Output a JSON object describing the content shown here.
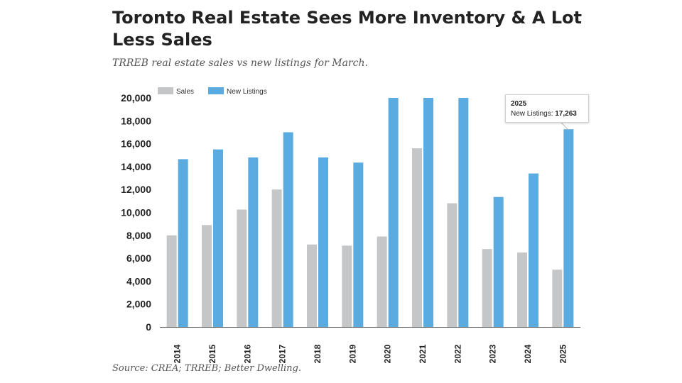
{
  "header": {
    "title": "Toronto Real Estate Sees More Inventory & A Lot Less Sales",
    "subtitle": "TRREB real estate sales vs new listings for March."
  },
  "footer": {
    "source": "Source: CREA; TRREB; Better Dwelling."
  },
  "tooltip": {
    "year": "2025",
    "label": "New Listings:",
    "value": "17,263"
  },
  "chart_data": {
    "type": "bar",
    "title": "",
    "xlabel": "",
    "ylabel": "",
    "categories": [
      "2014",
      "2015",
      "2016",
      "2017",
      "2018",
      "2019",
      "2020",
      "2021",
      "2022",
      "2023",
      "2024",
      "2025"
    ],
    "series": [
      {
        "name": "Sales",
        "color": "#c4c6c8",
        "values": [
          8000,
          8900,
          10250,
          12000,
          7200,
          7100,
          7900,
          15600,
          10800,
          6800,
          6500,
          5000
        ]
      },
      {
        "name": "New Listings",
        "color": "#5aabdf",
        "values": [
          14650,
          15500,
          14800,
          17000,
          14800,
          14350,
          20000,
          20000,
          20000,
          11350,
          13400,
          17263
        ]
      }
    ],
    "ylim": [
      0,
      20000
    ],
    "yticks": [
      "0",
      "2,000",
      "4,000",
      "6,000",
      "8,000",
      "10,000",
      "12,000",
      "14,000",
      "16,000",
      "18,000",
      "20,000"
    ],
    "grid": false,
    "legend": "top-left"
  }
}
